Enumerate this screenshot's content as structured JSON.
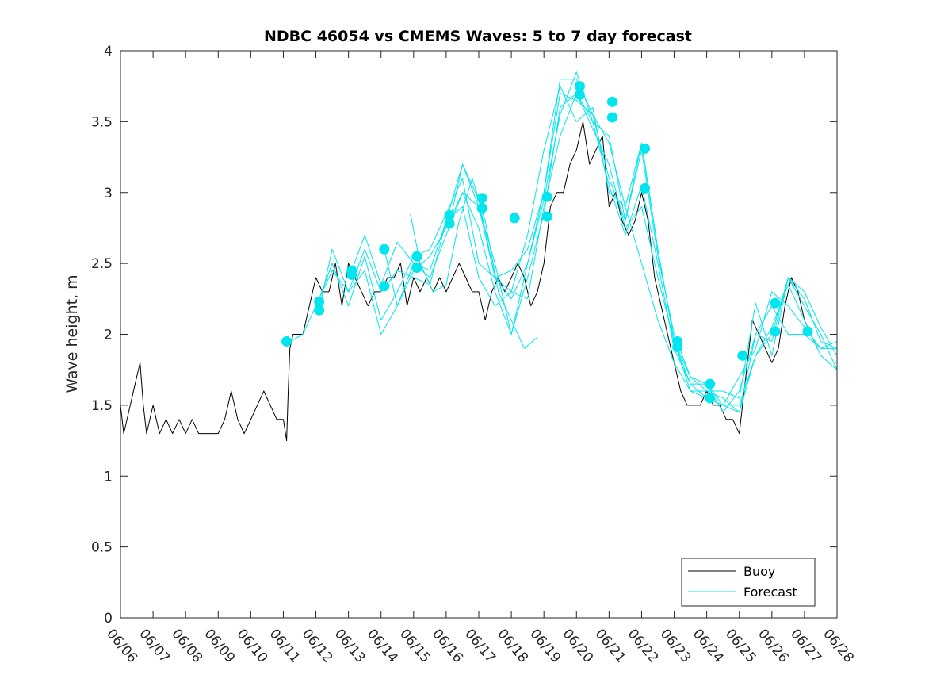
{
  "chart_data": {
    "type": "line",
    "title": "NDBC 46054 vs CMEMS Waves: 5 to 7 day forecast",
    "xlabel": "",
    "ylabel": "Wave height, m",
    "xlim": [
      0,
      22
    ],
    "ylim": [
      0,
      4
    ],
    "x_tick_labels": [
      "06/06",
      "06/07",
      "06/08",
      "06/09",
      "06/10",
      "06/11",
      "06/12",
      "06/13",
      "06/14",
      "06/15",
      "06/16",
      "06/17",
      "06/18",
      "06/19",
      "06/20",
      "06/21",
      "06/22",
      "06/23",
      "06/24",
      "06/25",
      "06/26",
      "06/27",
      "06/28"
    ],
    "y_ticks": [
      0,
      0.5,
      1,
      1.5,
      2,
      2.5,
      3,
      3.5,
      4
    ],
    "y_tick_labels": [
      "0",
      "0.5",
      "1",
      "1.5",
      "2",
      "2.5",
      "3",
      "3.5",
      "4"
    ],
    "x_units": "days since 06/06",
    "legend": {
      "position": "bottom-right",
      "entries": [
        "Buoy",
        "Forecast"
      ]
    },
    "colors": {
      "buoy": "#000000",
      "forecast": "#00e5ee"
    },
    "series": [
      {
        "name": "Buoy",
        "x": [
          0,
          0.1,
          0.2,
          0.3,
          0.4,
          0.5,
          0.6,
          0.7,
          0.8,
          0.9,
          1.0,
          1.2,
          1.4,
          1.6,
          1.8,
          2.0,
          2.2,
          2.4,
          2.6,
          2.8,
          3.0,
          3.2,
          3.4,
          3.6,
          3.8,
          4.0,
          4.2,
          4.4,
          4.6,
          4.8,
          5.0,
          5.1,
          5.15,
          5.2,
          5.3,
          5.4,
          5.5,
          5.6,
          5.8,
          6.0,
          6.2,
          6.4,
          6.6,
          6.8,
          7.0,
          7.2,
          7.4,
          7.6,
          7.8,
          8.0,
          8.2,
          8.4,
          8.6,
          8.8,
          9.0,
          9.2,
          9.4,
          9.6,
          9.8,
          10.0,
          10.2,
          10.4,
          10.6,
          10.8,
          11.0,
          11.2,
          11.4,
          11.6,
          11.8,
          12.0,
          12.2,
          12.4,
          12.6,
          12.8,
          13.0,
          13.2,
          13.4,
          13.6,
          13.8,
          14.0,
          14.2,
          14.4,
          14.6,
          14.8,
          15.0,
          15.2,
          15.4,
          15.6,
          15.8,
          16.0,
          16.2,
          16.4,
          16.6,
          16.8,
          17.0,
          17.2,
          17.4,
          17.6,
          17.8,
          18.0,
          18.2,
          18.4,
          18.6,
          18.8,
          19.0,
          19.2,
          19.4,
          19.6,
          19.8,
          20.0,
          20.2,
          20.4,
          20.6,
          20.8,
          21.0,
          21.2,
          21.4
        ],
        "values": [
          1.5,
          1.3,
          1.4,
          1.5,
          1.6,
          1.7,
          1.8,
          1.5,
          1.3,
          1.4,
          1.5,
          1.3,
          1.4,
          1.3,
          1.4,
          1.3,
          1.4,
          1.3,
          1.3,
          1.3,
          1.3,
          1.4,
          1.6,
          1.4,
          1.3,
          1.4,
          1.5,
          1.6,
          1.5,
          1.4,
          1.4,
          1.25,
          1.6,
          1.9,
          2.0,
          2.0,
          2.0,
          2.0,
          2.2,
          2.4,
          2.3,
          2.3,
          2.5,
          2.2,
          2.5,
          2.4,
          2.3,
          2.2,
          2.3,
          2.3,
          2.4,
          2.4,
          2.5,
          2.2,
          2.4,
          2.3,
          2.4,
          2.3,
          2.4,
          2.3,
          2.4,
          2.5,
          2.4,
          2.3,
          2.3,
          2.1,
          2.3,
          2.4,
          2.3,
          2.4,
          2.5,
          2.4,
          2.2,
          2.3,
          2.5,
          2.9,
          3.0,
          3.0,
          3.2,
          3.3,
          3.5,
          3.2,
          3.3,
          3.4,
          2.9,
          3.0,
          2.8,
          2.7,
          2.8,
          3.0,
          2.8,
          2.4,
          2.2,
          2.0,
          1.8,
          1.6,
          1.5,
          1.5,
          1.5,
          1.6,
          1.5,
          1.5,
          1.4,
          1.4,
          1.3,
          1.7,
          2.1,
          2.0,
          1.9,
          1.8,
          1.9,
          2.2,
          2.4,
          2.3,
          2.1,
          2.0,
          1.9
        ]
      },
      {
        "name": "Forecast",
        "x": [
          5.2,
          5.6,
          6.0,
          6.5,
          7.0,
          7.5,
          8.0,
          8.5,
          9.0,
          9.5,
          10.0,
          10.5,
          11.0,
          11.5,
          12.0,
          12.5,
          13.0,
          13.5,
          14.0,
          14.5,
          15.0,
          15.5,
          16.0,
          16.5,
          17.0,
          17.5,
          18.0,
          18.5,
          19.0,
          19.5,
          20.0,
          20.5,
          21.0,
          21.5,
          22.0
        ],
        "values": [
          1.95,
          2.0,
          2.2,
          2.45,
          2.3,
          2.6,
          2.3,
          2.45,
          2.4,
          2.35,
          2.8,
          2.9,
          2.4,
          2.2,
          2.3,
          2.7,
          3.3,
          3.75,
          3.5,
          3.6,
          3.0,
          2.9,
          2.5,
          2.1,
          1.8,
          1.6,
          1.55,
          1.5,
          1.7,
          1.9,
          2.3,
          2.2,
          2.05,
          1.9,
          1.95
        ]
      },
      {
        "name": "",
        "x": [
          6.1,
          6.5,
          7.0,
          7.5,
          8.0,
          8.5,
          9.0,
          9.5,
          10.0,
          10.5,
          11.0,
          11.5,
          12.0,
          12.5,
          13.0,
          13.5,
          14.0,
          14.5,
          15.0,
          15.5,
          16.0,
          16.5,
          17.0,
          17.5,
          18.0,
          18.5,
          19.0,
          19.5,
          20.0,
          20.5,
          21.0,
          21.5,
          22.0
        ],
        "values": [
          2.25,
          2.5,
          2.2,
          2.55,
          2.1,
          2.3,
          2.55,
          2.6,
          2.85,
          3.1,
          2.5,
          2.4,
          2.25,
          2.5,
          3.0,
          3.7,
          3.65,
          3.55,
          3.1,
          2.8,
          3.35,
          2.6,
          1.95,
          1.7,
          1.65,
          1.45,
          1.6,
          2.0,
          2.2,
          2.0,
          2.0,
          1.9,
          1.9
        ]
      },
      {
        "name": "",
        "x": [
          6.1,
          6.5,
          7.0,
          7.5,
          8.0,
          8.5,
          9.0,
          9.5,
          10.0,
          10.5,
          11.0,
          11.5,
          12.0,
          12.5,
          13.0,
          13.5,
          14.0,
          14.5,
          15.0,
          15.5,
          16.0,
          16.5,
          17.0,
          17.5,
          18.0,
          18.5,
          19.0,
          19.5,
          20.0,
          20.5,
          21.0,
          21.5,
          22.0
        ],
        "values": [
          2.18,
          2.6,
          2.3,
          2.45,
          2.0,
          2.2,
          2.45,
          2.55,
          2.75,
          3.0,
          2.75,
          2.3,
          2.0,
          2.4,
          2.85,
          3.6,
          3.7,
          3.5,
          3.05,
          2.7,
          3.05,
          2.5,
          1.9,
          1.65,
          1.55,
          1.5,
          1.5,
          1.85,
          2.05,
          2.35,
          2.1,
          1.85,
          1.75
        ]
      },
      {
        "name": "",
        "x": [
          7.1,
          7.5,
          8.0,
          8.5,
          9.0,
          9.5,
          10.0,
          10.5,
          11.0,
          11.5,
          12.0,
          12.5,
          13.0,
          13.5,
          14.0,
          14.5,
          15.0,
          15.5,
          16.0,
          16.5,
          17.0,
          17.5,
          18.0,
          18.5,
          19.0,
          19.5,
          20.0,
          20.5,
          21.0,
          21.5,
          22.0
        ],
        "values": [
          2.45,
          2.7,
          2.35,
          2.65,
          2.5,
          2.45,
          2.8,
          3.2,
          2.9,
          2.4,
          2.45,
          2.6,
          3.0,
          3.8,
          3.8,
          3.55,
          3.35,
          2.9,
          3.35,
          2.6,
          1.95,
          1.6,
          1.6,
          1.55,
          1.45,
          2.0,
          1.95,
          2.4,
          2.2,
          2.0,
          1.75
        ]
      },
      {
        "name": "",
        "x": [
          8.1,
          8.5,
          9.0,
          9.5,
          10.0,
          10.5,
          11.0,
          11.5,
          12.0,
          12.5,
          13.0,
          13.5,
          14.0,
          14.5,
          15.0,
          15.5,
          16.0,
          16.5,
          17.0,
          17.5,
          18.0,
          18.5,
          19.0,
          19.5,
          20.0,
          20.5,
          21.0,
          21.5,
          22.0
        ],
        "values": [
          2.6,
          2.2,
          2.5,
          2.4,
          2.7,
          3.0,
          2.9,
          2.5,
          2.0,
          2.5,
          2.95,
          3.55,
          3.85,
          3.5,
          3.4,
          2.8,
          3.3,
          2.55,
          2.0,
          1.7,
          1.6,
          1.6,
          1.55,
          2.22,
          1.85,
          2.4,
          2.3,
          2.05,
          1.85
        ]
      },
      {
        "name": "",
        "x": [
          8.9,
          9.2,
          9.6,
          10.0,
          10.4,
          10.8,
          11.2,
          11.6,
          12.0,
          12.4,
          12.8
        ],
        "values": [
          2.85,
          2.5,
          2.3,
          2.35,
          2.8,
          3.1,
          2.8,
          2.3,
          2.1,
          1.9,
          1.98
        ]
      },
      {
        "name": "",
        "x": [
          10.1,
          10.5,
          11.0,
          11.5,
          12.0,
          12.5,
          13.0,
          13.5,
          14.0,
          14.5,
          15.0,
          15.5,
          16.0,
          16.5,
          17.0,
          17.5,
          18.0,
          18.5,
          19.0,
          19.5,
          20.0,
          20.5,
          21.0,
          21.5,
          22.0
        ],
        "values": [
          2.78,
          3.2,
          2.95,
          2.4,
          2.3,
          2.25,
          2.9,
          3.4,
          3.7,
          3.45,
          3.2,
          2.75,
          2.9,
          2.4,
          1.95,
          1.65,
          1.65,
          1.5,
          1.45,
          1.85,
          2.0,
          2.4,
          2.25,
          1.95,
          1.9
        ]
      }
    ],
    "markers": {
      "x": [
        5.1,
        6.1,
        6.1,
        7.1,
        7.1,
        8.1,
        8.1,
        9.1,
        9.1,
        10.1,
        10.1,
        11.1,
        11.1,
        12.1,
        13.1,
        13.1,
        14.1,
        14.1,
        15.1,
        15.1,
        16.1,
        16.1,
        17.1,
        17.1,
        18.1,
        18.1,
        19.1,
        20.1,
        20.1,
        21.1
      ],
      "values": [
        1.95,
        2.23,
        2.17,
        2.45,
        2.42,
        2.6,
        2.34,
        2.55,
        2.47,
        2.84,
        2.78,
        2.96,
        2.89,
        2.82,
        2.97,
        2.83,
        3.75,
        3.69,
        3.64,
        3.53,
        3.31,
        3.03,
        1.95,
        1.91,
        1.65,
        1.55,
        1.85,
        2.22,
        2.02,
        2.02
      ]
    }
  }
}
